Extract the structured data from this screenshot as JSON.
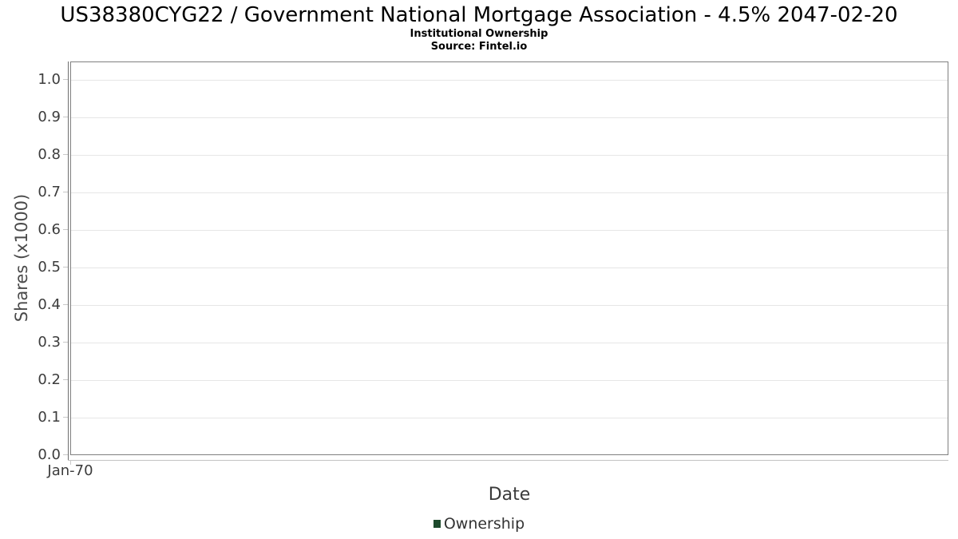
{
  "chart_data": {
    "type": "line",
    "title": "US38380CYG22 / Government National Mortgage Association - 4.5% 2047-02-20",
    "subtitle": "Institutional Ownership",
    "source": "Source: Fintel.io",
    "xlabel": "Date",
    "ylabel": "Shares (x1000)",
    "ylim": [
      0.0,
      1.05
    ],
    "yticks": [
      "0.0",
      "0.1",
      "0.2",
      "0.3",
      "0.4",
      "0.5",
      "0.6",
      "0.7",
      "0.8",
      "0.9",
      "1.0"
    ],
    "xticks": [
      "Jan-70"
    ],
    "grid": "horizontal-only",
    "legend": {
      "position": "bottom-center",
      "entries": [
        {
          "label": "Ownership",
          "color": "#1d4a2c"
        }
      ]
    },
    "series": [
      {
        "name": "Ownership",
        "x": [],
        "values": []
      }
    ]
  }
}
